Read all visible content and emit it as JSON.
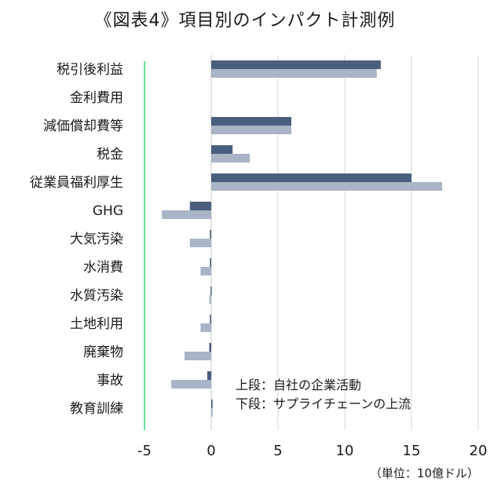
{
  "chart_data": {
    "type": "bar",
    "orientation": "horizontal",
    "title": "《図表4》項目別のインパクト計測例",
    "unit_label": "（単位：10億ドル）",
    "categories": [
      "税引後利益",
      "金利費用",
      "減価償却費等",
      "税金",
      "従業員福利厚生",
      "GHG",
      "大気汚染",
      "水消費",
      "水質汚染",
      "土地利用",
      "廃棄物",
      "事故",
      "教育訓練"
    ],
    "series": [
      {
        "name": "上段：自社の企業活動",
        "color": "#4a5f7e",
        "values": [
          12.7,
          0,
          6.0,
          1.6,
          15.0,
          -1.6,
          -0.1,
          -0.1,
          -0.05,
          -0.1,
          -0.15,
          -0.3,
          0.1
        ]
      },
      {
        "name": "下段：サプライチェーンの上流",
        "color": "#a9b4c6",
        "values": [
          12.4,
          0,
          6.0,
          2.9,
          17.3,
          -3.7,
          -1.6,
          -0.8,
          -0.15,
          -0.8,
          -2.0,
          -3.0,
          0.1
        ]
      }
    ],
    "xlim": [
      -5,
      20
    ],
    "xticks": [
      -5,
      0,
      5,
      10,
      15,
      20
    ],
    "grid": "vertical",
    "legend_position": "bottom-right, inside plot",
    "axis_accent_color": "#5ee58f"
  }
}
